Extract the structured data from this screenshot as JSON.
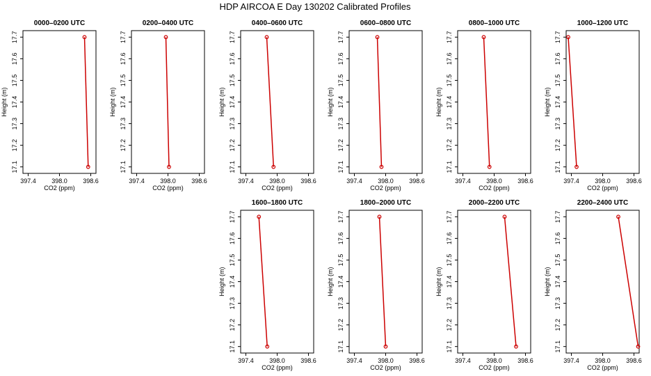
{
  "figure": {
    "title": "HDP AIRCOA E  Day 130202  Calibrated Profiles"
  },
  "chart_data": [
    {
      "type": "line",
      "title": "0000–0200 UTC",
      "xlabel": "CO2 (ppm)",
      "ylabel": "Height (m)",
      "xlim": [
        397.3,
        398.7
      ],
      "ylim": [
        17.07,
        17.73
      ],
      "xticks": [
        "397.4",
        "398.0",
        "398.6"
      ],
      "yticks": [
        "17.1",
        "17.2",
        "17.3",
        "17.4",
        "17.5",
        "17.6",
        "17.7"
      ],
      "series": [
        {
          "color": "#cc0000",
          "x": [
            398.48,
            398.55
          ],
          "y": [
            17.7,
            17.1
          ]
        }
      ]
    },
    {
      "type": "line",
      "title": "0200–0400 UTC",
      "xlabel": "CO2 (ppm)",
      "ylabel": "Height (m)",
      "xlim": [
        397.3,
        398.7
      ],
      "ylim": [
        17.07,
        17.73
      ],
      "xticks": [
        "397.4",
        "398.0",
        "398.6"
      ],
      "yticks": [
        "17.1",
        "17.2",
        "17.3",
        "17.4",
        "17.5",
        "17.6",
        "17.7"
      ],
      "series": [
        {
          "color": "#cc0000",
          "x": [
            397.96,
            398.02
          ],
          "y": [
            17.7,
            17.1
          ]
        }
      ]
    },
    {
      "type": "line",
      "title": "0400–0600 UTC",
      "xlabel": "CO2 (ppm)",
      "ylabel": "Height (m)",
      "xlim": [
        397.3,
        398.7
      ],
      "ylim": [
        17.07,
        17.73
      ],
      "xticks": [
        "397.4",
        "398.0",
        "398.6"
      ],
      "yticks": [
        "17.1",
        "17.2",
        "17.3",
        "17.4",
        "17.5",
        "17.6",
        "17.7"
      ],
      "series": [
        {
          "color": "#cc0000",
          "x": [
            397.8,
            397.93
          ],
          "y": [
            17.7,
            17.1
          ]
        }
      ]
    },
    {
      "type": "line",
      "title": "0600–0800 UTC",
      "xlabel": "CO2 (ppm)",
      "ylabel": "Height (m)",
      "xlim": [
        397.3,
        398.7
      ],
      "ylim": [
        17.07,
        17.73
      ],
      "xticks": [
        "397.4",
        "398.0",
        "398.6"
      ],
      "yticks": [
        "17.1",
        "17.2",
        "17.3",
        "17.4",
        "17.5",
        "17.6",
        "17.7"
      ],
      "series": [
        {
          "color": "#cc0000",
          "x": [
            397.84,
            397.92
          ],
          "y": [
            17.7,
            17.1
          ]
        }
      ]
    },
    {
      "type": "line",
      "title": "0800–1000 UTC",
      "xlabel": "CO2 (ppm)",
      "ylabel": "Height (m)",
      "xlim": [
        397.3,
        398.7
      ],
      "ylim": [
        17.07,
        17.73
      ],
      "xticks": [
        "397.4",
        "398.0",
        "398.6"
      ],
      "yticks": [
        "17.1",
        "17.2",
        "17.3",
        "17.4",
        "17.5",
        "17.6",
        "17.7"
      ],
      "series": [
        {
          "color": "#cc0000",
          "x": [
            397.8,
            397.91
          ],
          "y": [
            17.7,
            17.1
          ]
        }
      ]
    },
    {
      "type": "line",
      "title": "1000–1200 UTC",
      "xlabel": "CO2 (ppm)",
      "ylabel": "Height (m)",
      "xlim": [
        397.3,
        398.7
      ],
      "ylim": [
        17.07,
        17.73
      ],
      "xticks": [
        "397.4",
        "398.0",
        "398.6"
      ],
      "yticks": [
        "17.1",
        "17.2",
        "17.3",
        "17.4",
        "17.5",
        "17.6",
        "17.7"
      ],
      "series": [
        {
          "color": "#cc0000",
          "x": [
            397.34,
            397.5
          ],
          "y": [
            17.7,
            17.1
          ]
        }
      ]
    },
    {
      "type": "line",
      "title": "1600–1800 UTC",
      "xlabel": "CO2 (ppm)",
      "ylabel": "Height (m)",
      "xlim": [
        397.3,
        398.7
      ],
      "ylim": [
        17.07,
        17.73
      ],
      "xticks": [
        "397.4",
        "398.0",
        "398.6"
      ],
      "yticks": [
        "17.1",
        "17.2",
        "17.3",
        "17.4",
        "17.5",
        "17.6",
        "17.7"
      ],
      "series": [
        {
          "color": "#cc0000",
          "x": [
            397.65,
            397.81
          ],
          "y": [
            17.7,
            17.1
          ]
        }
      ]
    },
    {
      "type": "line",
      "title": "1800–2000 UTC",
      "xlabel": "CO2 (ppm)",
      "ylabel": "Height (m)",
      "xlim": [
        397.3,
        398.7
      ],
      "ylim": [
        17.07,
        17.73
      ],
      "xticks": [
        "397.4",
        "398.0",
        "398.6"
      ],
      "yticks": [
        "17.1",
        "17.2",
        "17.3",
        "17.4",
        "17.5",
        "17.6",
        "17.7"
      ],
      "series": [
        {
          "color": "#cc0000",
          "x": [
            397.88,
            398.0
          ],
          "y": [
            17.7,
            17.1
          ]
        }
      ]
    },
    {
      "type": "line",
      "title": "2000–2200 UTC",
      "xlabel": "CO2 (ppm)",
      "ylabel": "Height (m)",
      "xlim": [
        397.3,
        398.7
      ],
      "ylim": [
        17.07,
        17.73
      ],
      "xticks": [
        "397.4",
        "398.0",
        "398.6"
      ],
      "yticks": [
        "17.1",
        "17.2",
        "17.3",
        "17.4",
        "17.5",
        "17.6",
        "17.7"
      ],
      "series": [
        {
          "color": "#cc0000",
          "x": [
            398.2,
            398.42
          ],
          "y": [
            17.7,
            17.1
          ]
        }
      ]
    },
    {
      "type": "line",
      "title": "2200–2400 UTC",
      "xlabel": "CO2 (ppm)",
      "ylabel": "Height (m)",
      "xlim": [
        397.3,
        398.7
      ],
      "ylim": [
        17.07,
        17.73
      ],
      "xticks": [
        "397.4",
        "398.0",
        "398.6"
      ],
      "yticks": [
        "17.1",
        "17.2",
        "17.3",
        "17.4",
        "17.5",
        "17.6",
        "17.7"
      ],
      "series": [
        {
          "color": "#cc0000",
          "x": [
            398.3,
            398.68
          ],
          "y": [
            17.7,
            17.1
          ]
        }
      ]
    }
  ]
}
